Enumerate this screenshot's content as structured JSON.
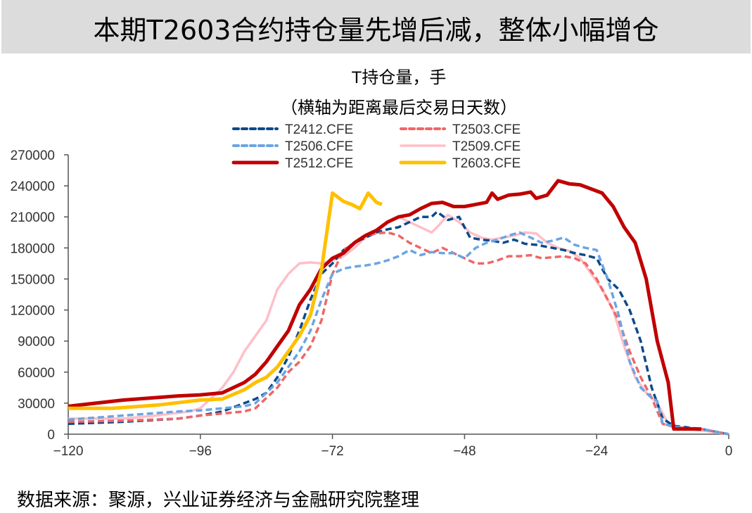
{
  "header": {
    "title": "本期T2603合约持仓量先增后减，整体小幅增仓"
  },
  "footer": {
    "source": "数据来源：聚源，兴业证券经济与金融研究院整理"
  },
  "chart_data": {
    "type": "line",
    "title": "T持仓量，手",
    "subtitle": "（横轴为距离最后交易日天数）",
    "xlim": [
      -120,
      0
    ],
    "ylim": [
      0,
      270000
    ],
    "xticks": [
      -120,
      -96,
      -72,
      -48,
      -24,
      0
    ],
    "yticks": [
      0,
      30000,
      60000,
      90000,
      120000,
      150000,
      180000,
      210000,
      240000,
      270000
    ],
    "legend": "top",
    "grid": false,
    "series": [
      {
        "name": "T2412.CFE",
        "color": "#0b4a8b",
        "style": "dashed",
        "x": [
          -120,
          -110,
          -100,
          -96,
          -92,
          -88,
          -86,
          -84,
          -82,
          -80,
          -78,
          -76,
          -74,
          -72,
          -70,
          -68,
          -66,
          -64,
          -62,
          -60,
          -58,
          -56,
          -54,
          -53,
          -51,
          -49,
          -47,
          -45,
          -43,
          -41,
          -39,
          -37,
          -35,
          -32,
          -30,
          -28,
          -26,
          -24,
          -22,
          -20,
          -18,
          -16,
          -14,
          -12,
          -10,
          -5,
          0
        ],
        "y": [
          10000,
          12000,
          15000,
          18000,
          22000,
          30000,
          34000,
          40000,
          55000,
          75000,
          100000,
          130000,
          155000,
          165000,
          178000,
          185000,
          190000,
          195000,
          198000,
          200000,
          205000,
          210000,
          210000,
          215000,
          207000,
          210000,
          190000,
          188000,
          187000,
          185000,
          188000,
          184000,
          183000,
          180000,
          178000,
          175000,
          173000,
          170000,
          150000,
          140000,
          120000,
          90000,
          45000,
          15000,
          8000,
          5000,
          0
        ]
      },
      {
        "name": "T2503.CFE",
        "color": "#f06666",
        "style": "dashed",
        "x": [
          -120,
          -110,
          -100,
          -96,
          -92,
          -88,
          -86,
          -84,
          -82,
          -80,
          -78,
          -76,
          -74,
          -72,
          -70,
          -68,
          -66,
          -64,
          -62,
          -60,
          -58,
          -56,
          -54,
          -52,
          -50,
          -48,
          -46,
          -44,
          -42,
          -40,
          -38,
          -36,
          -34,
          -30,
          -28,
          -26,
          -24,
          -22,
          -20,
          -18,
          -16,
          -14,
          -12,
          -10,
          -5,
          0
        ],
        "y": [
          12000,
          13000,
          15000,
          18000,
          20000,
          22000,
          25000,
          35000,
          45000,
          60000,
          70000,
          85000,
          110000,
          155000,
          178000,
          185000,
          192000,
          194000,
          195000,
          192000,
          185000,
          180000,
          175000,
          180000,
          175000,
          170000,
          165000,
          165000,
          168000,
          172000,
          172000,
          173000,
          170000,
          172000,
          170000,
          165000,
          150000,
          130000,
          110000,
          80000,
          55000,
          35000,
          10000,
          7000,
          5000,
          0
        ]
      },
      {
        "name": "T2506.CFE",
        "color": "#6ba5e3",
        "style": "dashed",
        "x": [
          -120,
          -110,
          -100,
          -96,
          -92,
          -88,
          -86,
          -84,
          -82,
          -80,
          -78,
          -76,
          -74,
          -72,
          -70,
          -68,
          -66,
          -64,
          -62,
          -60,
          -58,
          -56,
          -54,
          -52,
          -50,
          -48,
          -46,
          -44,
          -42,
          -40,
          -38,
          -36,
          -34,
          -32,
          -30,
          -28,
          -26,
          -24,
          -22,
          -20,
          -18,
          -16,
          -14,
          -13,
          -12,
          -8,
          -4,
          0
        ],
        "y": [
          14000,
          18000,
          22000,
          23000,
          25000,
          27000,
          30000,
          40000,
          50000,
          65000,
          80000,
          100000,
          130000,
          155000,
          160000,
          162000,
          163000,
          165000,
          168000,
          172000,
          178000,
          173000,
          176000,
          175000,
          175000,
          170000,
          180000,
          185000,
          188000,
          192000,
          195000,
          190000,
          185000,
          187000,
          190000,
          183000,
          180000,
          178000,
          150000,
          115000,
          70000,
          45000,
          35000,
          32000,
          10000,
          5000,
          4000,
          0
        ]
      },
      {
        "name": "T2509.CFE",
        "color": "#ffbfc8",
        "style": "solid",
        "x": [
          -120,
          -110,
          -104,
          -98,
          -96,
          -94,
          -92,
          -90,
          -88,
          -86,
          -84,
          -82,
          -80,
          -78,
          -76,
          -74,
          -72,
          -70,
          -68,
          -66,
          -64,
          -62,
          -60,
          -58,
          -56,
          -54,
          -53,
          -51,
          -49,
          -47,
          -45,
          -43,
          -41,
          -39,
          -37,
          -35,
          -33,
          -31,
          -29,
          -27,
          -25,
          -23,
          -21,
          -19,
          -17,
          -15,
          -13,
          -11,
          -8,
          -4,
          0
        ],
        "y": [
          15000,
          15000,
          18000,
          22000,
          25000,
          35000,
          45000,
          60000,
          80000,
          95000,
          110000,
          140000,
          155000,
          165000,
          166000,
          165000,
          168000,
          172000,
          180000,
          190000,
          195000,
          205000,
          210000,
          205000,
          200000,
          195000,
          200000,
          212000,
          205000,
          195000,
          190000,
          188000,
          190000,
          192000,
          195000,
          194000,
          185000,
          180000,
          177000,
          170000,
          155000,
          140000,
          120000,
          85000,
          55000,
          40000,
          30000,
          10000,
          5000,
          3000,
          0
        ]
      },
      {
        "name": "T2512.CFE",
        "color": "#c00000",
        "style": "solid",
        "x": [
          -120,
          -110,
          -100,
          -96,
          -92,
          -88,
          -86,
          -84,
          -82,
          -80,
          -78,
          -76,
          -74,
          -72,
          -70,
          -68,
          -66,
          -64,
          -62,
          -60,
          -58,
          -56,
          -54,
          -52,
          -50,
          -48,
          -46,
          -44,
          -43,
          -42,
          -40,
          -38,
          -36,
          -35,
          -33,
          -31,
          -29,
          -27,
          -25,
          -23,
          -21,
          -19,
          -17,
          -15,
          -13,
          -11,
          -10,
          -8,
          -5
        ],
        "y": [
          27000,
          33000,
          37000,
          38000,
          40000,
          50000,
          58000,
          70000,
          85000,
          100000,
          125000,
          140000,
          160000,
          170000,
          175000,
          185000,
          192000,
          197000,
          205000,
          210000,
          212000,
          218000,
          223000,
          224000,
          220000,
          220000,
          222000,
          224000,
          233000,
          227000,
          231000,
          232000,
          234000,
          228000,
          231000,
          245000,
          242000,
          241000,
          237000,
          233000,
          220000,
          200000,
          185000,
          150000,
          90000,
          50000,
          5000,
          5000,
          5000
        ]
      },
      {
        "name": "T2603.CFE",
        "color": "#ffc000",
        "style": "solid",
        "x": [
          -120,
          -112,
          -104,
          -96,
          -92,
          -88,
          -86,
          -84,
          -82,
          -80,
          -78,
          -76,
          -74,
          -72,
          -70,
          -68.5,
          -67,
          -65.5,
          -64,
          -63
        ],
        "y": [
          25000,
          25000,
          28000,
          33000,
          34000,
          43000,
          50000,
          55000,
          65000,
          80000,
          95000,
          115000,
          159000,
          233000,
          225000,
          222000,
          218000,
          233000,
          224000,
          222000
        ]
      }
    ]
  }
}
